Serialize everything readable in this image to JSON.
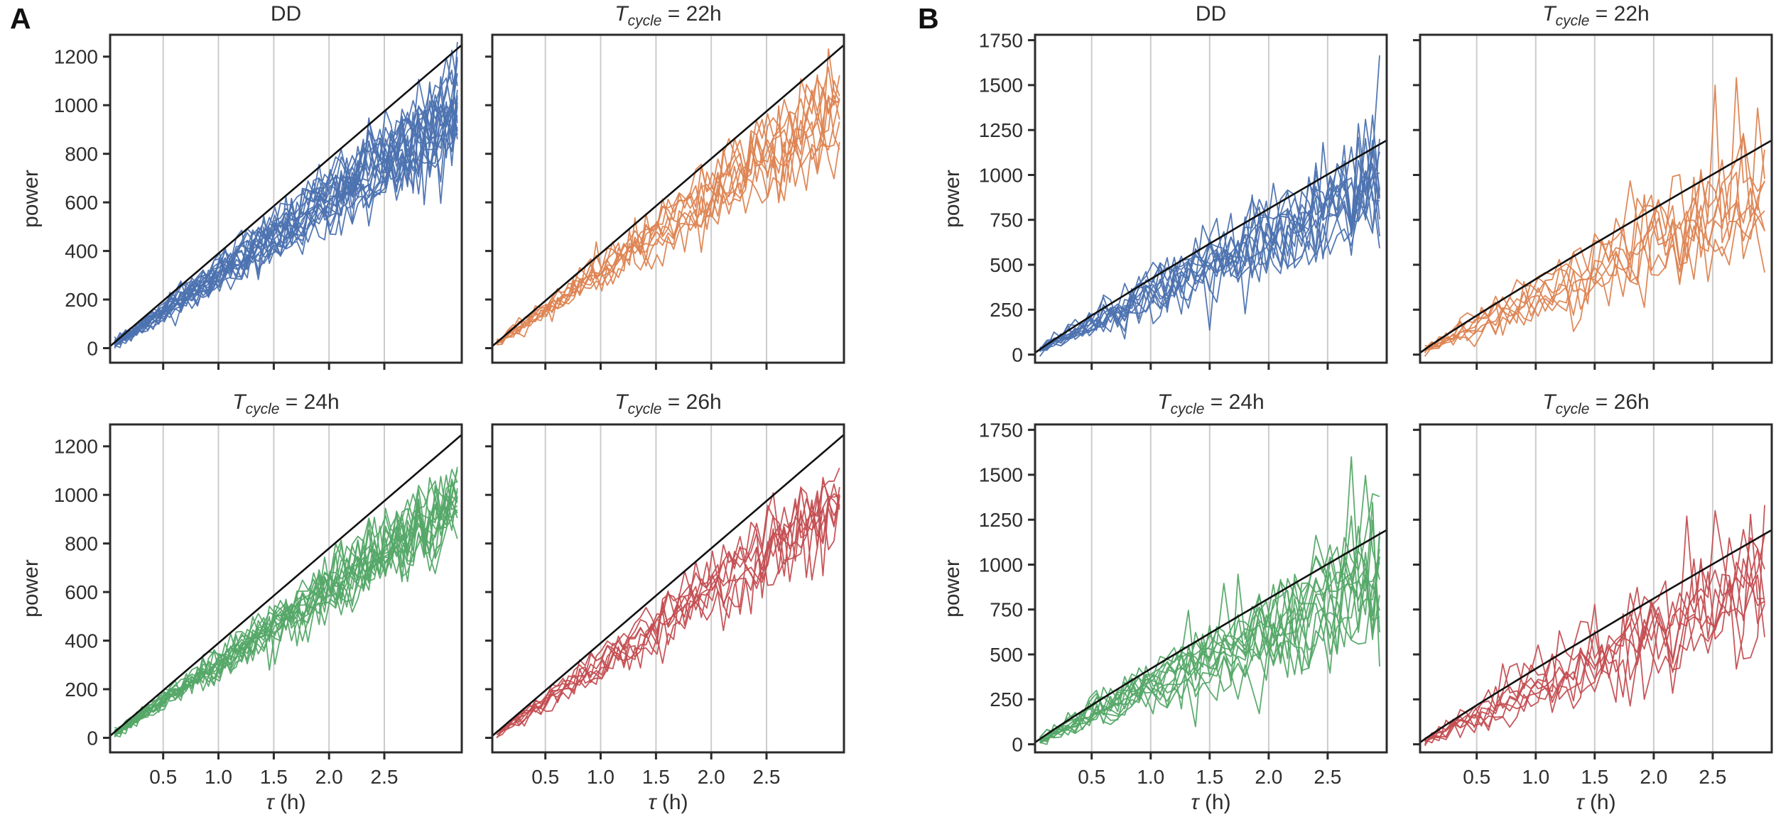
{
  "figure": {
    "background": "#ffffff",
    "grid_color": "#cccccc",
    "spine_color": "#2b2b2b",
    "reference_line_color": "#111111"
  },
  "chart_data": {
    "type": "line",
    "description": "Two-panel figure (A, B); each panel is a 2x2 grid of subplots showing many noisy power-vs-tau traces below a smooth black reference curve.",
    "panels": [
      {
        "label": "A",
        "ylabel": "power",
        "xlabel_tau": "τ",
        "xlabel_unit": " (h)",
        "x_tick_values": [
          0.5,
          1.0,
          1.5,
          2.0,
          2.5
        ],
        "x_tick_labels": [
          "0.5",
          "1.0",
          "1.5",
          "2.0",
          "2.5"
        ],
        "y_tick_values": [
          0,
          200,
          400,
          600,
          800,
          1000,
          1200
        ],
        "y_tick_labels": [
          "0",
          "200",
          "400",
          "600",
          "800",
          "1000",
          "1200"
        ],
        "xlim": [
          0.02,
          3.2
        ],
        "ylim": [
          -60,
          1290
        ],
        "grid": "vertical",
        "reference_line": {
          "coeff": 390,
          "exponent": 1.0,
          "end_value": 1248
        },
        "trace_dt": 0.05,
        "tau_start": 0.06,
        "tau_end": 3.18,
        "subplots": [
          {
            "title": {
              "t": "",
              "sub": "",
              "rest": "DD"
            },
            "color": "#4C72B0",
            "n_traces": 20,
            "trace_level": 0.8,
            "trace_spread": 0.08,
            "noise_base": 8,
            "noise_slope": 24,
            "spike_prob": 0,
            "forced_spikes": [],
            "traces_end_range": [
              820,
              1130
            ]
          },
          {
            "title": {
              "t": "T",
              "sub": "cycle",
              "rest": " = 22h"
            },
            "color": "#DD8452",
            "n_traces": 10,
            "trace_level": 0.8,
            "trace_spread": 0.08,
            "noise_base": 8,
            "noise_slope": 24,
            "spike_prob": 0,
            "forced_spikes": [],
            "traces_end_range": [
              850,
              1120
            ]
          },
          {
            "title": {
              "t": "T",
              "sub": "cycle",
              "rest": " = 24h"
            },
            "color": "#55A868",
            "n_traces": 16,
            "trace_level": 0.8,
            "trace_spread": 0.08,
            "noise_base": 8,
            "noise_slope": 24,
            "spike_prob": 0,
            "forced_spikes": [],
            "traces_end_range": [
              840,
              1110
            ]
          },
          {
            "title": {
              "t": "T",
              "sub": "cycle",
              "rest": " = 26h"
            },
            "color": "#C44E52",
            "n_traces": 9,
            "trace_level": 0.79,
            "trace_spread": 0.08,
            "noise_base": 8,
            "noise_slope": 26,
            "spike_prob": 0,
            "forced_spikes": [],
            "traces_end_range": [
              820,
              1100
            ]
          }
        ]
      },
      {
        "label": "B",
        "ylabel": "power",
        "xlabel_tau": "τ",
        "xlabel_unit": " (h)",
        "x_tick_values": [
          0.5,
          1.0,
          1.5,
          2.0,
          2.5
        ],
        "x_tick_labels": [
          "0.5",
          "1.0",
          "1.5",
          "2.0",
          "2.5"
        ],
        "y_tick_values": [
          0,
          250,
          500,
          750,
          1000,
          1250,
          1500,
          1750
        ],
        "y_tick_labels": [
          "0",
          "250",
          "500",
          "750",
          "1000",
          "1250",
          "1500",
          "1750"
        ],
        "xlim": [
          0.02,
          3.0
        ],
        "ylim": [
          -45,
          1780
        ],
        "grid": "vertical",
        "reference_line": {
          "coeff": 420,
          "exponent": 0.95,
          "end_value": 1200
        },
        "trace_dt": 0.06,
        "tau_start": 0.06,
        "tau_end": 2.97,
        "subplots": [
          {
            "title": {
              "t": "",
              "sub": "",
              "rest": "DD"
            },
            "color": "#4C72B0",
            "n_traces": 13,
            "trace_level": 0.77,
            "trace_spread": 0.15,
            "noise_base": 10,
            "noise_slope": 55,
            "spike_prob": 0.018,
            "forced_spikes": [
              {
                "trace": 0,
                "tau": 2.94,
                "value": 1665
              }
            ],
            "traces_end_range": [
              600,
              1250
            ]
          },
          {
            "title": {
              "t": "T",
              "sub": "cycle",
              "rest": " = 22h"
            },
            "color": "#DD8452",
            "n_traces": 8,
            "trace_level": 0.77,
            "trace_spread": 0.15,
            "noise_base": 10,
            "noise_slope": 55,
            "spike_prob": 0.018,
            "forced_spikes": [
              {
                "trace": 1,
                "tau": 2.55,
                "value": 1500
              }
            ],
            "traces_end_range": [
              650,
              1150
            ]
          },
          {
            "title": {
              "t": "T",
              "sub": "cycle",
              "rest": " = 24h"
            },
            "color": "#55A868",
            "n_traces": 13,
            "trace_level": 0.77,
            "trace_spread": 0.15,
            "noise_base": 10,
            "noise_slope": 55,
            "spike_prob": 0.018,
            "forced_spikes": [
              {
                "trace": 2,
                "tau": 2.7,
                "value": 1600
              }
            ],
            "traces_end_range": [
              600,
              1200
            ]
          },
          {
            "title": {
              "t": "T",
              "sub": "cycle",
              "rest": " = 26h"
            },
            "color": "#C44E52",
            "n_traces": 8,
            "trace_level": 0.75,
            "trace_spread": 0.15,
            "noise_base": 10,
            "noise_slope": 58,
            "spike_prob": 0.02,
            "forced_spikes": [
              {
                "trace": 0,
                "tau": 2.3,
                "value": 1270
              },
              {
                "trace": 3,
                "tau": 2.55,
                "value": 1300
              }
            ],
            "traces_end_range": [
              550,
              1150
            ]
          }
        ]
      }
    ]
  }
}
